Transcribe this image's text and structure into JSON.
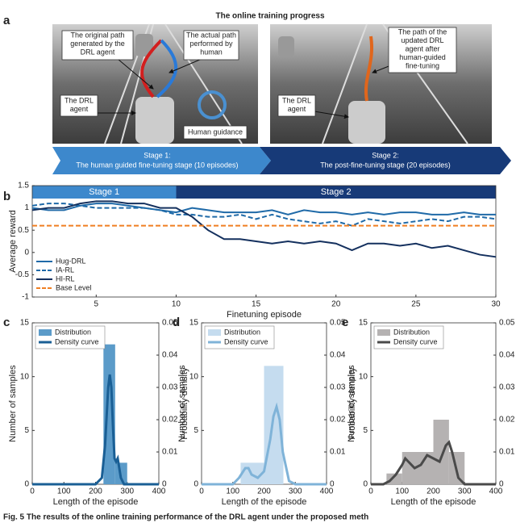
{
  "panel_a": {
    "letter": "a",
    "title": "The online training progress",
    "left_labels": [
      {
        "lines": [
          "The original path",
          "generated by the",
          "DRL agent"
        ]
      },
      {
        "lines": [
          "The actual path",
          "performed by",
          "human"
        ]
      },
      {
        "lines": [
          "The DRL",
          "agent"
        ]
      },
      {
        "lines": [
          "Human guidance"
        ]
      }
    ],
    "right_labels": [
      {
        "lines": [
          "The path of the",
          "updated DRL",
          "agent after",
          "human-guided",
          "fine-tuning"
        ]
      },
      {
        "lines": [
          "The DRL",
          "agent"
        ]
      }
    ],
    "stages": [
      {
        "title": "Stage 1:",
        "text": "The human guided fine-tuning stage (10 episodes)",
        "color": "#3d88cc"
      },
      {
        "title": "Stage 2:",
        "text": "The post-fine-tuning stage (20 episodes)",
        "color": "#173a78"
      }
    ]
  },
  "chart_data": [
    {
      "type": "line",
      "panel": "b",
      "xlabel": "Finetuning episode",
      "ylabel": "Average reward",
      "x": [
        1,
        2,
        3,
        4,
        5,
        6,
        7,
        8,
        9,
        10,
        11,
        12,
        13,
        14,
        15,
        16,
        17,
        18,
        19,
        20,
        21,
        22,
        23,
        24,
        25,
        26,
        27,
        28,
        29,
        30
      ],
      "series": [
        {
          "name": "Hug-DRL",
          "color": "#1f6aa8",
          "dash": false,
          "values": [
            1.0,
            0.95,
            0.95,
            1.05,
            1.1,
            1.1,
            1.05,
            1.0,
            0.95,
            0.9,
            1.0,
            0.95,
            0.9,
            0.9,
            0.9,
            0.95,
            0.85,
            0.95,
            0.9,
            0.9,
            0.85,
            0.9,
            0.85,
            0.9,
            0.9,
            0.85,
            0.85,
            0.9,
            0.85,
            0.85
          ]
        },
        {
          "name": "IA-RL",
          "color": "#1f6aa8",
          "dash": true,
          "values": [
            1.05,
            1.1,
            1.1,
            1.05,
            1.0,
            1.0,
            1.0,
            1.0,
            0.95,
            0.85,
            0.85,
            0.8,
            0.8,
            0.85,
            0.75,
            0.85,
            0.75,
            0.7,
            0.65,
            0.7,
            0.6,
            0.75,
            0.7,
            0.65,
            0.7,
            0.75,
            0.7,
            0.8,
            0.8,
            0.75
          ]
        },
        {
          "name": "HI-RL",
          "color": "#14305e",
          "dash": false,
          "values": [
            0.95,
            1.0,
            1.0,
            1.1,
            1.15,
            1.15,
            1.1,
            1.1,
            1.0,
            1.0,
            0.8,
            0.5,
            0.3,
            0.3,
            0.25,
            0.2,
            0.25,
            0.2,
            0.25,
            0.2,
            0.05,
            0.2,
            0.2,
            0.15,
            0.2,
            0.1,
            0.15,
            0.05,
            -0.05,
            -0.1
          ]
        },
        {
          "name": "Base Level",
          "color": "#f07f22",
          "dash": true,
          "values": [
            0.6,
            0.6,
            0.6,
            0.6,
            0.6,
            0.6,
            0.6,
            0.6,
            0.6,
            0.6,
            0.6,
            0.6,
            0.6,
            0.6,
            0.6,
            0.6,
            0.6,
            0.6,
            0.6,
            0.6,
            0.6,
            0.6,
            0.6,
            0.6,
            0.6,
            0.6,
            0.6,
            0.6,
            0.6,
            0.6
          ]
        }
      ],
      "xlim": [
        1,
        30
      ],
      "xticks": [
        5,
        10,
        15,
        20,
        25,
        30
      ],
      "ylim": [
        -1,
        1.5
      ],
      "yticks": [
        -1,
        -0.5,
        0,
        0.5,
        1,
        1.5
      ],
      "legend": "lower left",
      "stages": [
        {
          "label": "Stage 1",
          "start": 1,
          "end": 10,
          "color": "#3d88cc"
        },
        {
          "label": "Stage 2",
          "start": 10,
          "end": 30,
          "color": "#173a78"
        }
      ]
    },
    {
      "type": "histogram",
      "panel": "c",
      "xlabel": "Length of the episode",
      "ylabel": "Number of samples",
      "y2label": "Probability density",
      "bins": [
        225,
        262,
        300
      ],
      "counts": [
        13,
        2
      ],
      "bar_name": "Distribution",
      "bar_color": "#5b9bc9",
      "curve": {
        "name": "Density curve",
        "color": "#1a5f95",
        "axis": "y2",
        "x": [
          0,
          200,
          220,
          230,
          240,
          245,
          250,
          255,
          260,
          265,
          270,
          275,
          280,
          290,
          300,
          400
        ],
        "y": [
          0,
          0,
          0.002,
          0.012,
          0.03,
          0.034,
          0.03,
          0.018,
          0.008,
          0.007,
          0.008,
          0.005,
          0.002,
          0,
          0,
          0
        ]
      },
      "xlim": [
        0,
        400
      ],
      "xticks": [
        0,
        100,
        200,
        300,
        400
      ],
      "ylim": [
        0,
        15
      ],
      "yticks": [
        0,
        5,
        10,
        15
      ],
      "y2lim": [
        0,
        0.05
      ],
      "y2ticks": [
        0,
        0.01,
        0.02,
        0.03,
        0.04,
        0.05
      ],
      "legend": "upper right"
    },
    {
      "type": "histogram",
      "panel": "d",
      "xlabel": "Length of the episode",
      "ylabel": "Number of samples",
      "y2label": "Probability density",
      "bins": [
        125,
        200,
        262
      ],
      "counts": [
        2,
        11
      ],
      "bar_name": "Distribution",
      "bar_color": "#c5dcef",
      "curve": {
        "name": "Density curve",
        "color": "#7fb3d8",
        "axis": "y2",
        "x": [
          0,
          100,
          120,
          140,
          150,
          160,
          180,
          200,
          220,
          230,
          240,
          250,
          260,
          280,
          300,
          400
        ],
        "y": [
          0,
          0,
          0.002,
          0.005,
          0.005,
          0.003,
          0.002,
          0.004,
          0.014,
          0.021,
          0.024,
          0.02,
          0.01,
          0.001,
          0,
          0
        ]
      },
      "xlim": [
        0,
        400
      ],
      "xticks": [
        0,
        100,
        200,
        300,
        400
      ],
      "ylim": [
        0,
        15
      ],
      "yticks": [
        0,
        5,
        10,
        15
      ],
      "y2lim": [
        0,
        0.05
      ],
      "y2ticks": [
        0,
        0.01,
        0.02,
        0.03,
        0.04,
        0.05
      ],
      "legend": "upper right"
    },
    {
      "type": "histogram",
      "panel": "e",
      "xlabel": "Length of the episode",
      "ylabel": "Number of samples",
      "y2label": "Probability density",
      "bins": [
        50,
        100,
        200,
        250,
        300
      ],
      "counts": [
        1,
        3,
        6,
        3
      ],
      "bar_name": "Distribution",
      "bar_color": "#b5b2b2",
      "curve": {
        "name": "Density curve",
        "color": "#4a4a4a",
        "axis": "y2",
        "x": [
          0,
          40,
          60,
          80,
          100,
          110,
          120,
          140,
          160,
          180,
          200,
          220,
          240,
          250,
          260,
          280,
          300,
          400
        ],
        "y": [
          0,
          0,
          0.001,
          0.003,
          0.006,
          0.008,
          0.007,
          0.005,
          0.006,
          0.009,
          0.008,
          0.007,
          0.012,
          0.013,
          0.01,
          0.002,
          0,
          0
        ]
      },
      "xlim": [
        0,
        400
      ],
      "xticks": [
        0,
        100,
        200,
        300,
        400
      ],
      "ylim": [
        0,
        15
      ],
      "yticks": [
        0,
        5,
        10,
        15
      ],
      "y2lim": [
        0,
        0.05
      ],
      "y2ticks": [
        0,
        0.01,
        0.02,
        0.03,
        0.04,
        0.05
      ],
      "legend": "upper right"
    }
  ],
  "caption": "Fig. 5 The results of the online training performance of the DRL agent under the proposed meth"
}
